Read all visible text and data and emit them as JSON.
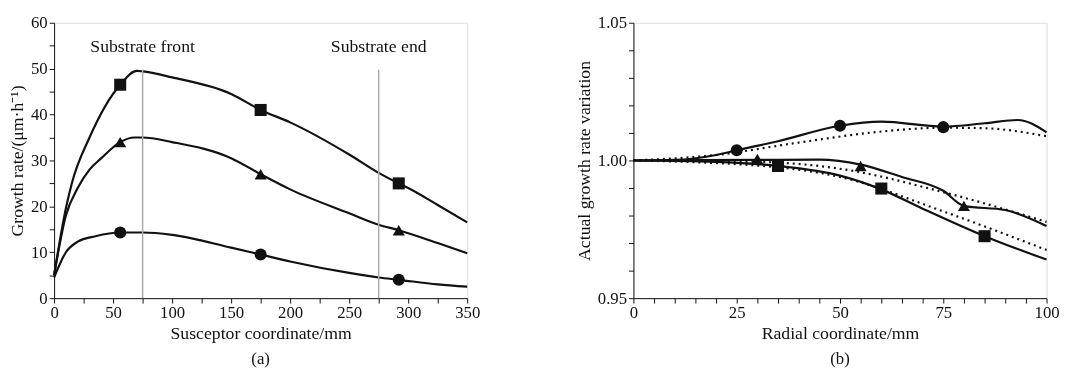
{
  "chart_data": [
    {
      "type": "line",
      "xlabel": "Susceptor coordinate/mm",
      "ylabel": "Growth rate/(μm·h⁻¹)",
      "annotations": [
        "(a)"
      ],
      "grid": false,
      "xlim": [
        0,
        350
      ],
      "xticks": [
        0,
        {
          "value": 25,
          "label": null
        },
        50,
        {
          "value": 75,
          "label": null
        },
        100,
        {
          "value": 125,
          "label": null
        },
        150,
        {
          "value": 175,
          "label": null
        },
        200,
        {
          "value": 225,
          "label": null
        },
        250,
        {
          "value": 275,
          "label": null
        },
        300,
        {
          "value": 325,
          "label": null
        },
        350
      ],
      "ylim": [
        0,
        60
      ],
      "yticks": [
        0,
        {
          "value": 5,
          "label": null
        },
        10,
        {
          "value": 15,
          "label": null
        },
        20,
        {
          "value": 25,
          "label": null
        },
        30,
        {
          "value": 35,
          "label": null
        },
        40,
        {
          "value": 45,
          "label": null
        },
        50,
        {
          "value": 55,
          "label": null
        },
        60
      ],
      "ref_lines": [
        {
          "axis": "x",
          "value": 75,
          "label": "Substrate front",
          "color": "#aaaaaa"
        },
        {
          "axis": "x",
          "value": 275,
          "label": "Substrate end",
          "color": "#aaaaaa"
        }
      ],
      "series": [
        {
          "type": "line",
          "color": "#111111",
          "line_style": "solid",
          "x": [
            0,
            10,
            15,
            30,
            56,
            70,
            75,
            100,
            150,
            175,
            200,
            250,
            275,
            292,
            300,
            325,
            350
          ],
          "values": [
            5,
            19.6,
            25,
            35,
            46.5,
            49.5,
            49.4,
            48.1,
            44.5,
            41,
            38.3,
            31.3,
            27.3,
            25,
            24,
            20.3,
            16.5
          ]
        },
        {
          "type": "scatter",
          "color": "#111111",
          "marker": "square",
          "x": [
            56,
            175,
            292
          ],
          "values": [
            46.5,
            41,
            25
          ]
        },
        {
          "type": "line",
          "color": "#111111",
          "line_style": "solid",
          "x": [
            0,
            10,
            20,
            30,
            40,
            56,
            68,
            75,
            100,
            150,
            175,
            200,
            250,
            275,
            292,
            325,
            350
          ],
          "values": [
            5,
            18,
            24,
            28,
            30.5,
            34,
            35,
            35,
            34,
            30.5,
            27,
            23.7,
            18.5,
            16,
            14.8,
            12,
            9.8
          ]
        },
        {
          "type": "scatter",
          "color": "#111111",
          "marker": "triangle",
          "x": [
            56,
            175,
            292
          ],
          "values": [
            34,
            27,
            14.8
          ]
        },
        {
          "type": "line",
          "color": "#111111",
          "line_style": "solid",
          "x": [
            0,
            10,
            20,
            35,
            56,
            75,
            100,
            150,
            175,
            200,
            250,
            275,
            292,
            325,
            350
          ],
          "values": [
            4.5,
            10,
            12.3,
            13.5,
            14.3,
            14.3,
            13.8,
            11,
            9.5,
            8,
            5.5,
            4.5,
            4,
            3,
            2.5
          ]
        },
        {
          "type": "scatter",
          "color": "#111111",
          "marker": "circle",
          "x": [
            56,
            175,
            292
          ],
          "values": [
            14.3,
            9.5,
            4
          ]
        }
      ]
    },
    {
      "type": "line",
      "xlabel": "Radial coordinate/mm",
      "ylabel": "Actual growth rate variation",
      "annotations": [
        "(b)"
      ],
      "grid": false,
      "xlim": [
        0,
        100
      ],
      "xticks": [
        0,
        {
          "value": 5,
          "label": null
        },
        {
          "value": 10,
          "label": null
        },
        {
          "value": 15,
          "label": null
        },
        {
          "value": 20,
          "label": null
        },
        25,
        {
          "value": 30,
          "label": null
        },
        {
          "value": 35,
          "label": null
        },
        {
          "value": 40,
          "label": null
        },
        {
          "value": 45,
          "label": null
        },
        50,
        {
          "value": 55,
          "label": null
        },
        {
          "value": 60,
          "label": null
        },
        {
          "value": 65,
          "label": null
        },
        {
          "value": 70,
          "label": null
        },
        75,
        {
          "value": 80,
          "label": null
        },
        {
          "value": 85,
          "label": null
        },
        {
          "value": 90,
          "label": null
        },
        {
          "value": 95,
          "label": null
        },
        100
      ],
      "ylim": [
        0.95,
        1.05
      ],
      "yticks": [
        {
          "value": 0.95,
          "label": "0.95"
        },
        {
          "value": 0.96,
          "label": null
        },
        {
          "value": 0.97,
          "label": null
        },
        {
          "value": 0.98,
          "label": null
        },
        {
          "value": 0.99,
          "label": null
        },
        {
          "value": 1.0,
          "label": "1.00"
        },
        {
          "value": 1.01,
          "label": null
        },
        {
          "value": 1.02,
          "label": null
        },
        {
          "value": 1.03,
          "label": null
        },
        {
          "value": 1.04,
          "label": null
        },
        {
          "value": 1.05,
          "label": "1.05"
        }
      ],
      "series": [
        {
          "type": "line",
          "color": "#111111",
          "line_style": "solid",
          "x": [
            0,
            10,
            20,
            25,
            35,
            50,
            60,
            75,
            85,
            93,
            100
          ],
          "values": [
            1.0,
            1.0002,
            1.002,
            1.0037,
            1.007,
            1.0126,
            1.0141,
            1.0123,
            1.0135,
            1.0147,
            1.0102
          ]
        },
        {
          "type": "line",
          "color": "#111111",
          "line_style": "dotted",
          "x": [
            0,
            20,
            40,
            60,
            75,
            85,
            100
          ],
          "values": [
            1.0,
            1.002,
            1.0065,
            1.0105,
            1.0119,
            1.0117,
            1.0088
          ]
        },
        {
          "type": "scatter",
          "color": "#111111",
          "marker": "circle",
          "x": [
            25,
            50,
            75
          ],
          "values": [
            1.0037,
            1.0126,
            1.0121
          ]
        },
        {
          "type": "line",
          "color": "#111111",
          "line_style": "solid",
          "x": [
            0,
            30,
            45,
            55,
            65,
            75,
            80,
            90,
            100
          ],
          "values": [
            1.0,
            1.0002,
            1.0003,
            0.9985,
            0.994,
            0.989,
            0.9835,
            0.982,
            0.9762
          ]
        },
        {
          "type": "line",
          "color": "#111111",
          "line_style": "dotted",
          "x": [
            0,
            30,
            50,
            75,
            100
          ],
          "values": [
            1.0,
            0.9995,
            0.997,
            0.9885,
            0.9777
          ]
        },
        {
          "type": "scatter",
          "color": "#111111",
          "marker": "triangle",
          "x": [
            30,
            55,
            80
          ],
          "values": [
            1.0005,
            0.998,
            0.9835
          ]
        },
        {
          "type": "line",
          "color": "#111111",
          "line_style": "solid",
          "x": [
            0,
            20,
            35,
            50,
            60,
            70,
            85,
            100
          ],
          "values": [
            1.0,
            0.9995,
            0.998,
            0.9945,
            0.9895,
            0.9825,
            0.9725,
            0.964
          ]
        },
        {
          "type": "line",
          "color": "#111111",
          "line_style": "dotted",
          "x": [
            0,
            35,
            50,
            75,
            100
          ],
          "values": [
            1.0,
            0.9975,
            0.994,
            0.9815,
            0.9675
          ]
        },
        {
          "type": "scatter",
          "color": "#111111",
          "marker": "square",
          "x": [
            35,
            60,
            85
          ],
          "values": [
            0.998,
            0.9898,
            0.9725
          ]
        }
      ]
    }
  ]
}
